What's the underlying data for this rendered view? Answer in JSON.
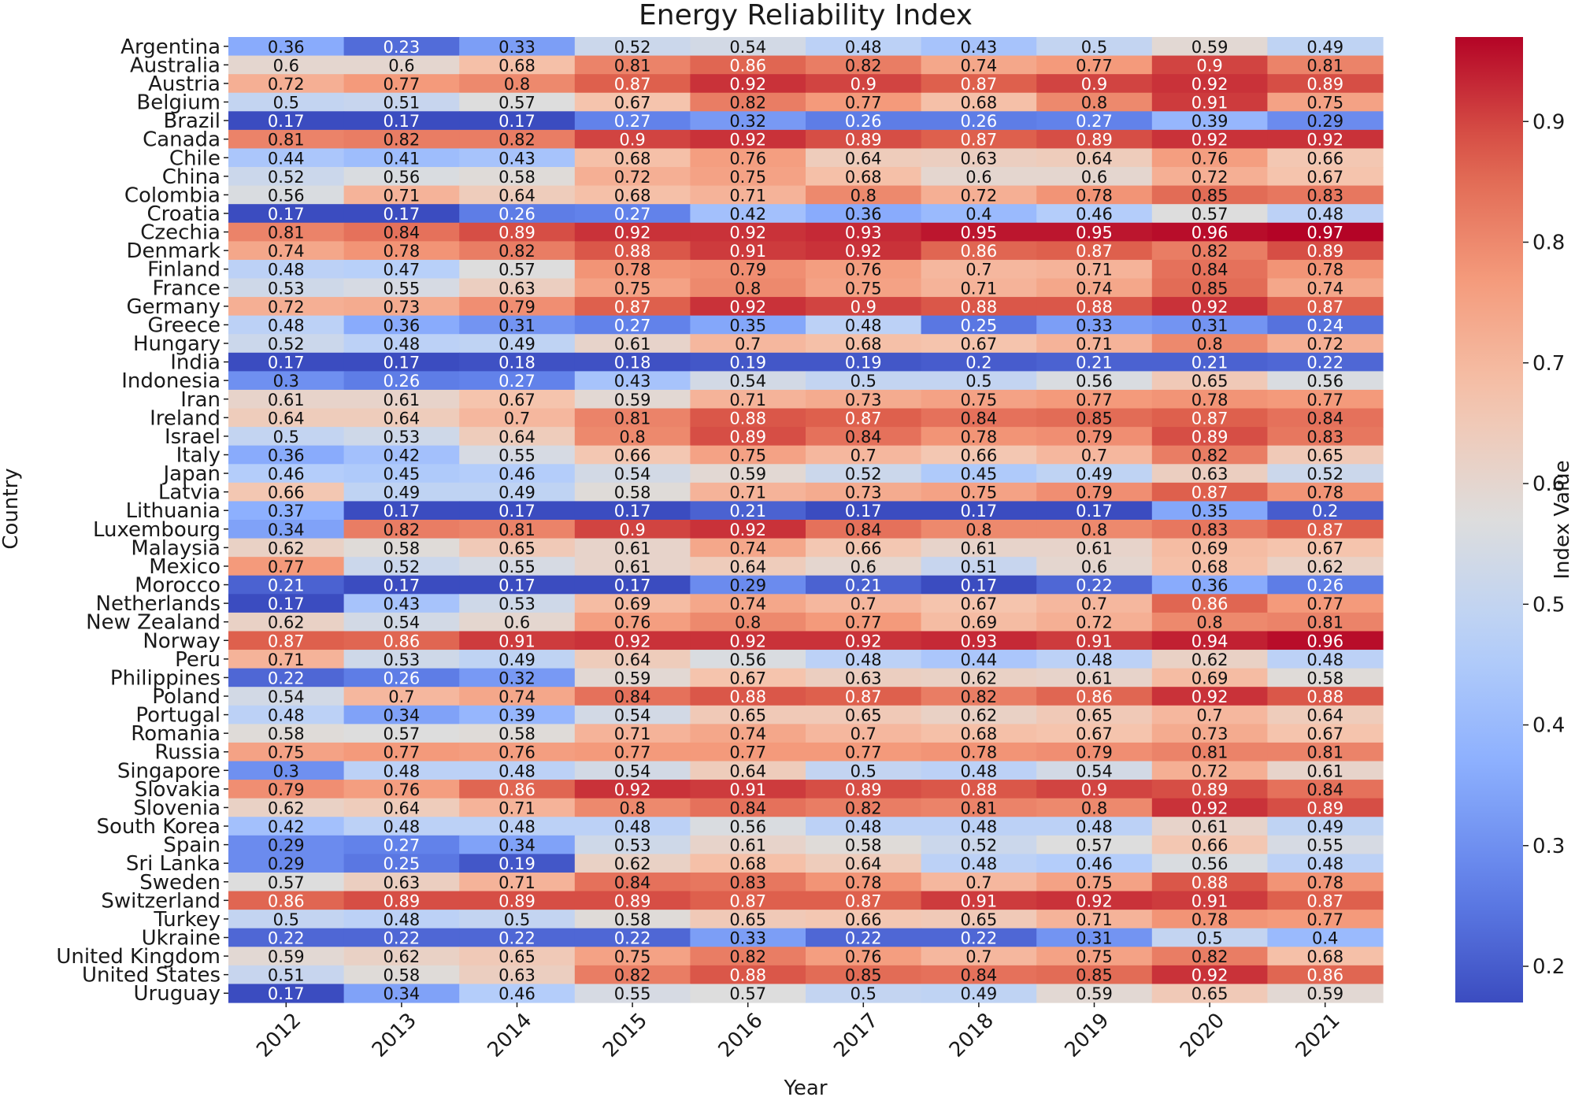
{
  "chart_data": {
    "type": "heatmap",
    "title": "Energy Reliability Index",
    "xlabel": "Year",
    "ylabel": "Country",
    "colorbar_label": "Index Value",
    "colormap": "coolwarm",
    "vmin": 0.17,
    "vmax": 0.97,
    "colorbar_ticks": [
      "0.2",
      "0.3",
      "0.4",
      "0.5",
      "0.6",
      "0.7",
      "0.8",
      "0.9"
    ],
    "x": [
      "2012",
      "2013",
      "2014",
      "2015",
      "2016",
      "2017",
      "2018",
      "2019",
      "2020",
      "2021"
    ],
    "y": [
      "Argentina",
      "Australia",
      "Austria",
      "Belgium",
      "Brazil",
      "Canada",
      "Chile",
      "China",
      "Colombia",
      "Croatia",
      "Czechia",
      "Denmark",
      "Finland",
      "France",
      "Germany",
      "Greece",
      "Hungary",
      "India",
      "Indonesia",
      "Iran",
      "Ireland",
      "Israel",
      "Italy",
      "Japan",
      "Latvia",
      "Lithuania",
      "Luxembourg",
      "Malaysia",
      "Mexico",
      "Morocco",
      "Netherlands",
      "New Zealand",
      "Norway",
      "Peru",
      "Philippines",
      "Poland",
      "Portugal",
      "Romania",
      "Russia",
      "Singapore",
      "Slovakia",
      "Slovenia",
      "South Korea",
      "Spain",
      "Sri Lanka",
      "Sweden",
      "Switzerland",
      "Turkey",
      "Ukraine",
      "United Kingdom",
      "United States",
      "Uruguay"
    ],
    "values": [
      [
        0.36,
        0.23,
        0.33,
        0.52,
        0.54,
        0.48,
        0.43,
        0.5,
        0.59,
        0.49
      ],
      [
        0.6,
        0.6,
        0.68,
        0.81,
        0.86,
        0.82,
        0.74,
        0.77,
        0.9,
        0.81
      ],
      [
        0.72,
        0.77,
        0.8,
        0.87,
        0.92,
        0.9,
        0.87,
        0.9,
        0.92,
        0.89
      ],
      [
        0.5,
        0.51,
        0.57,
        0.67,
        0.82,
        0.77,
        0.68,
        0.8,
        0.91,
        0.75
      ],
      [
        0.17,
        0.17,
        0.17,
        0.27,
        0.32,
        0.26,
        0.26,
        0.27,
        0.39,
        0.29
      ],
      [
        0.81,
        0.82,
        0.82,
        0.9,
        0.92,
        0.89,
        0.87,
        0.89,
        0.92,
        0.92
      ],
      [
        0.44,
        0.41,
        0.43,
        0.68,
        0.76,
        0.64,
        0.63,
        0.64,
        0.76,
        0.66
      ],
      [
        0.52,
        0.56,
        0.58,
        0.72,
        0.75,
        0.68,
        0.6,
        0.6,
        0.72,
        0.67
      ],
      [
        0.56,
        0.71,
        0.64,
        0.68,
        0.71,
        0.8,
        0.72,
        0.78,
        0.85,
        0.83
      ],
      [
        0.17,
        0.17,
        0.26,
        0.27,
        0.42,
        0.36,
        0.4,
        0.46,
        0.57,
        0.48
      ],
      [
        0.81,
        0.84,
        0.89,
        0.92,
        0.92,
        0.93,
        0.95,
        0.95,
        0.96,
        0.97
      ],
      [
        0.74,
        0.78,
        0.82,
        0.88,
        0.91,
        0.92,
        0.86,
        0.87,
        0.82,
        0.89
      ],
      [
        0.48,
        0.47,
        0.57,
        0.78,
        0.79,
        0.76,
        0.7,
        0.71,
        0.84,
        0.78
      ],
      [
        0.53,
        0.55,
        0.63,
        0.75,
        0.8,
        0.75,
        0.71,
        0.74,
        0.85,
        0.74
      ],
      [
        0.72,
        0.73,
        0.79,
        0.87,
        0.92,
        0.9,
        0.88,
        0.88,
        0.92,
        0.87
      ],
      [
        0.48,
        0.36,
        0.31,
        0.27,
        0.35,
        0.48,
        0.25,
        0.33,
        0.31,
        0.24
      ],
      [
        0.52,
        0.48,
        0.49,
        0.61,
        0.7,
        0.68,
        0.67,
        0.71,
        0.8,
        0.72
      ],
      [
        0.17,
        0.17,
        0.18,
        0.18,
        0.19,
        0.19,
        0.2,
        0.21,
        0.21,
        0.22
      ],
      [
        0.3,
        0.26,
        0.27,
        0.43,
        0.54,
        0.5,
        0.5,
        0.56,
        0.65,
        0.56
      ],
      [
        0.61,
        0.61,
        0.67,
        0.59,
        0.71,
        0.73,
        0.75,
        0.77,
        0.78,
        0.77
      ],
      [
        0.64,
        0.64,
        0.7,
        0.81,
        0.88,
        0.87,
        0.84,
        0.85,
        0.87,
        0.84
      ],
      [
        0.5,
        0.53,
        0.64,
        0.8,
        0.89,
        0.84,
        0.78,
        0.79,
        0.89,
        0.83
      ],
      [
        0.36,
        0.42,
        0.55,
        0.66,
        0.75,
        0.7,
        0.66,
        0.7,
        0.82,
        0.65
      ],
      [
        0.46,
        0.45,
        0.46,
        0.54,
        0.59,
        0.52,
        0.45,
        0.49,
        0.63,
        0.52
      ],
      [
        0.66,
        0.49,
        0.49,
        0.58,
        0.71,
        0.73,
        0.75,
        0.79,
        0.87,
        0.78
      ],
      [
        0.37,
        0.17,
        0.17,
        0.17,
        0.21,
        0.17,
        0.17,
        0.17,
        0.35,
        0.2
      ],
      [
        0.34,
        0.82,
        0.81,
        0.9,
        0.92,
        0.84,
        0.8,
        0.8,
        0.83,
        0.87
      ],
      [
        0.62,
        0.58,
        0.65,
        0.61,
        0.74,
        0.66,
        0.61,
        0.61,
        0.69,
        0.67
      ],
      [
        0.77,
        0.52,
        0.55,
        0.61,
        0.64,
        0.6,
        0.51,
        0.6,
        0.68,
        0.62
      ],
      [
        0.21,
        0.17,
        0.17,
        0.17,
        0.29,
        0.21,
        0.17,
        0.22,
        0.36,
        0.26
      ],
      [
        0.17,
        0.43,
        0.53,
        0.69,
        0.74,
        0.7,
        0.67,
        0.7,
        0.86,
        0.77
      ],
      [
        0.62,
        0.54,
        0.6,
        0.76,
        0.8,
        0.77,
        0.69,
        0.72,
        0.8,
        0.81
      ],
      [
        0.87,
        0.86,
        0.91,
        0.92,
        0.92,
        0.92,
        0.93,
        0.91,
        0.94,
        0.96
      ],
      [
        0.71,
        0.53,
        0.49,
        0.64,
        0.56,
        0.48,
        0.44,
        0.48,
        0.62,
        0.48
      ],
      [
        0.22,
        0.26,
        0.32,
        0.59,
        0.67,
        0.63,
        0.62,
        0.61,
        0.69,
        0.58
      ],
      [
        0.54,
        0.7,
        0.74,
        0.84,
        0.88,
        0.87,
        0.82,
        0.86,
        0.92,
        0.88
      ],
      [
        0.48,
        0.34,
        0.39,
        0.54,
        0.65,
        0.65,
        0.62,
        0.65,
        0.7,
        0.64
      ],
      [
        0.58,
        0.57,
        0.58,
        0.71,
        0.74,
        0.7,
        0.68,
        0.67,
        0.73,
        0.67
      ],
      [
        0.75,
        0.77,
        0.76,
        0.77,
        0.77,
        0.77,
        0.78,
        0.79,
        0.81,
        0.81
      ],
      [
        0.3,
        0.48,
        0.48,
        0.54,
        0.64,
        0.5,
        0.48,
        0.54,
        0.72,
        0.61
      ],
      [
        0.79,
        0.76,
        0.86,
        0.92,
        0.91,
        0.89,
        0.88,
        0.9,
        0.89,
        0.84
      ],
      [
        0.62,
        0.64,
        0.71,
        0.8,
        0.84,
        0.82,
        0.81,
        0.8,
        0.92,
        0.89
      ],
      [
        0.42,
        0.48,
        0.48,
        0.48,
        0.56,
        0.48,
        0.48,
        0.48,
        0.61,
        0.49
      ],
      [
        0.29,
        0.27,
        0.34,
        0.53,
        0.61,
        0.58,
        0.52,
        0.57,
        0.66,
        0.55
      ],
      [
        0.29,
        0.25,
        0.19,
        0.62,
        0.68,
        0.64,
        0.48,
        0.46,
        0.56,
        0.48
      ],
      [
        0.57,
        0.63,
        0.71,
        0.84,
        0.83,
        0.78,
        0.7,
        0.75,
        0.88,
        0.78
      ],
      [
        0.86,
        0.89,
        0.89,
        0.89,
        0.87,
        0.87,
        0.91,
        0.92,
        0.91,
        0.87
      ],
      [
        0.5,
        0.48,
        0.5,
        0.58,
        0.65,
        0.66,
        0.65,
        0.71,
        0.78,
        0.77
      ],
      [
        0.22,
        0.22,
        0.22,
        0.22,
        0.33,
        0.22,
        0.22,
        0.31,
        0.5,
        0.4
      ],
      [
        0.59,
        0.62,
        0.65,
        0.75,
        0.82,
        0.76,
        0.7,
        0.75,
        0.82,
        0.68
      ],
      [
        0.51,
        0.58,
        0.63,
        0.82,
        0.88,
        0.85,
        0.84,
        0.85,
        0.92,
        0.86
      ],
      [
        0.17,
        0.34,
        0.46,
        0.55,
        0.57,
        0.5,
        0.49,
        0.59,
        0.65,
        0.59
      ]
    ]
  }
}
